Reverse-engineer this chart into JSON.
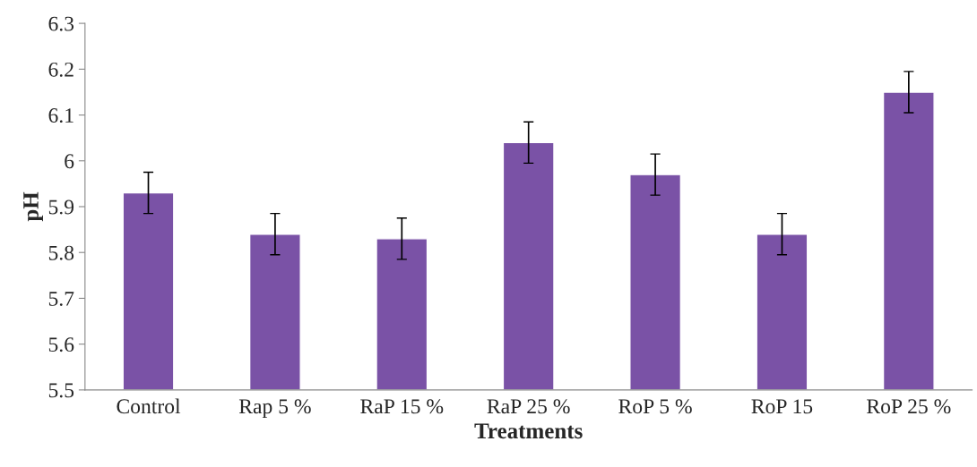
{
  "chart_data": {
    "type": "bar",
    "xlabel": "Treatments",
    "ylabel": "pH",
    "categories": [
      "Control",
      "Rap 5 %",
      "RaP 15 %",
      "RaP 25 %",
      "RoP 5 %",
      "RoP 15",
      "RoP 25 %"
    ],
    "values": [
      5.93,
      5.84,
      5.83,
      6.04,
      5.97,
      5.84,
      6.15
    ],
    "errors": [
      0.045,
      0.045,
      0.045,
      0.045,
      0.045,
      0.045,
      0.045
    ],
    "color": "#7a52a6",
    "ylim": [
      5.5,
      6.3
    ],
    "yticks": [
      5.5,
      5.6,
      5.7,
      5.8,
      5.9,
      6,
      6.1,
      6.2,
      6.3
    ],
    "grid": false,
    "legend": false
  }
}
